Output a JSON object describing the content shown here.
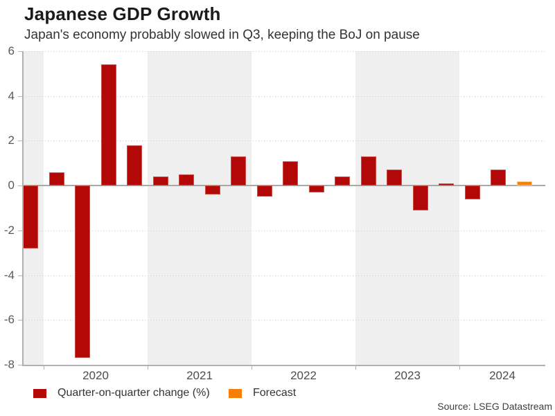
{
  "header": {
    "title": "Japanese GDP Growth",
    "subtitle": "Japan's economy probably slowed in Q3, keeping the BoJ on pause"
  },
  "chart_data": {
    "type": "bar",
    "title": "Japanese GDP Growth",
    "subtitle": "Japan's economy probably slowed in Q3, keeping the BoJ on pause",
    "ylabel": "Quarter-on-quarter change (%)",
    "ylim": [
      -8,
      6
    ],
    "yticks": [
      6,
      4,
      2,
      0,
      -2,
      -4,
      -6,
      -8
    ],
    "gridline_values": [
      6,
      4,
      2,
      -2,
      -4,
      -6
    ],
    "grid": "horizontal dotted",
    "legend_position": "bottom-left",
    "x_year_labels": [
      "2020",
      "2021",
      "2022",
      "2023",
      "2024"
    ],
    "shaded_year_bands": [
      2019,
      2021,
      2023
    ],
    "categories": [
      "2019 Q4",
      "2020 Q1",
      "2020 Q2",
      "2020 Q3",
      "2020 Q4",
      "2021 Q1",
      "2021 Q2",
      "2021 Q3",
      "2021 Q4",
      "2022 Q1",
      "2022 Q2",
      "2022 Q3",
      "2022 Q4",
      "2023 Q1",
      "2023 Q2",
      "2023 Q3",
      "2023 Q4",
      "2024 Q1",
      "2024 Q2",
      "2024 Q3"
    ],
    "values": [
      -2.8,
      0.6,
      -7.7,
      5.4,
      1.8,
      0.4,
      0.5,
      -0.4,
      1.3,
      -0.5,
      1.1,
      -0.3,
      0.4,
      1.3,
      0.7,
      -1.1,
      0.1,
      -0.6,
      0.7,
      0.2
    ],
    "forecast_index": 19,
    "series": [
      {
        "name": "Quarter-on-quarter change (%)",
        "color": "#b20808",
        "kind": "actual"
      },
      {
        "name": "Forecast",
        "color": "#f97d09",
        "kind": "forecast"
      }
    ]
  },
  "legend": {
    "items": [
      {
        "label": "Quarter-on-quarter change (%)",
        "color": "#b20808"
      },
      {
        "label": "Forecast",
        "color": "#f97d09"
      }
    ]
  },
  "source": "Source: LSEG Datastream",
  "colors": {
    "actual_bar": "#b20808",
    "forecast_bar": "#f97d09",
    "year_band": "#efefef",
    "gridline": "#c8c8c8",
    "zero_line": "#a8a8a8",
    "axis": "#b0b0b0",
    "tick_label": "#595959"
  }
}
